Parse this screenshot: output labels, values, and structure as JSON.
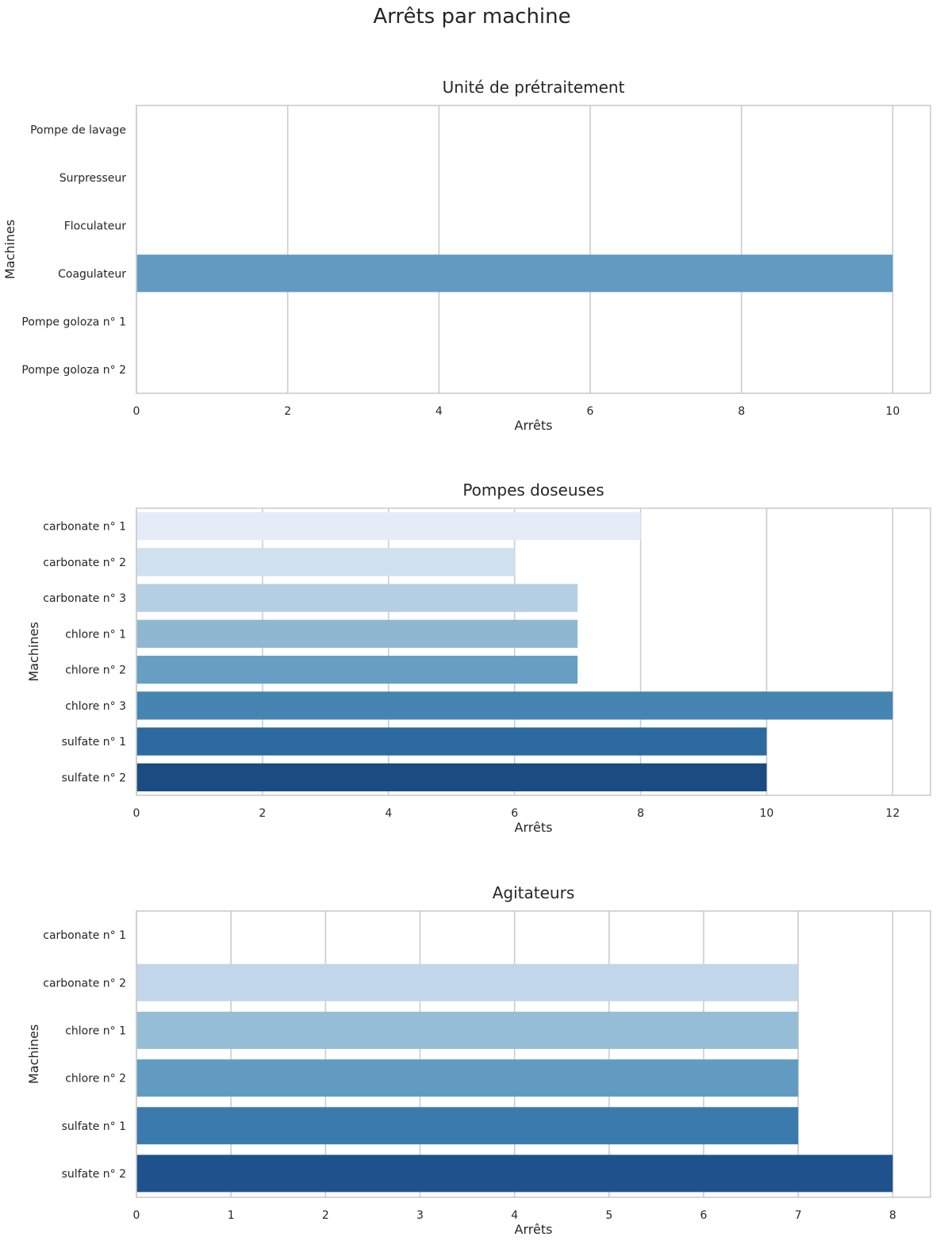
{
  "figure": {
    "title": "Arrêts par machine"
  },
  "chart_data": [
    {
      "type": "bar",
      "orientation": "horizontal",
      "title": "Unité de prétraitement",
      "xlabel": "Arrêts",
      "ylabel": "Machines",
      "categories": [
        "Pompe de lavage",
        "Surpresseur",
        "Floculateur",
        "Coagulateur",
        "Pompe goloza n° 1",
        "Pompe goloza n° 2"
      ],
      "values": [
        0,
        0,
        0,
        10,
        0,
        0
      ],
      "colors": [
        "#f7fbff",
        "#dbe9f6",
        "#c6dbef",
        "#629bc1",
        "#2f7ab7",
        "#1c5a9c"
      ],
      "xlim": [
        0,
        10.5
      ],
      "xticks": [
        0,
        2,
        4,
        6,
        8,
        10
      ],
      "grid": true
    },
    {
      "type": "bar",
      "orientation": "horizontal",
      "title": "Pompes doseuses",
      "xlabel": "Arrêts",
      "ylabel": "Machines",
      "categories": [
        "carbonate n° 1",
        "carbonate n° 2",
        "carbonate n° 3",
        "chlore n° 1",
        "chlore n° 2",
        "chlore n° 3",
        "sulfate n° 1",
        "sulfate n° 2"
      ],
      "values": [
        8,
        6,
        7,
        7,
        7,
        12,
        10,
        10
      ],
      "colors": [
        "#e4edf7",
        "#cfe0ee",
        "#b4cfe3",
        "#8fb7d1",
        "#669fc3",
        "#4685b2",
        "#2c6a9f",
        "#1b4b80"
      ],
      "xlim": [
        0,
        12.6
      ],
      "xticks": [
        0,
        2,
        4,
        6,
        8,
        10,
        12
      ],
      "grid": true
    },
    {
      "type": "bar",
      "orientation": "horizontal",
      "title": "Agitateurs",
      "xlabel": "Arrêts",
      "ylabel": "Machines",
      "categories": [
        "carbonate n° 1",
        "carbonate n° 2",
        "chlore n° 1",
        "chlore n° 2",
        "sulfate n° 1",
        "sulfate n° 2"
      ],
      "values": [
        0,
        7,
        7,
        7,
        7,
        8
      ],
      "colors": [
        "#e1ecf6",
        "#c1d6e8",
        "#95bdd5",
        "#629bc1",
        "#3b7aad",
        "#1f528c"
      ],
      "xlim": [
        0,
        8.4
      ],
      "xticks": [
        0,
        1,
        2,
        3,
        4,
        5,
        6,
        7,
        8
      ],
      "grid": true
    }
  ]
}
